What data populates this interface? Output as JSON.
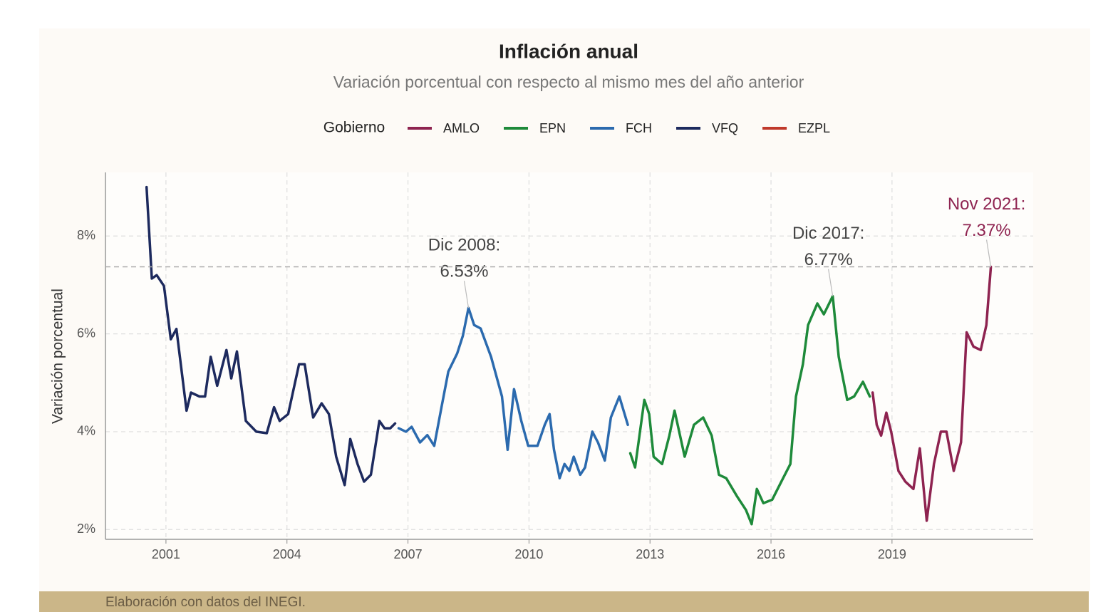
{
  "chart_data": {
    "type": "line",
    "title": "Inflación anual",
    "subtitle": "Variación porcentual con respecto al mismo mes del año anterior",
    "legend_title": "Gobierno",
    "y_label": "Variación porcentual",
    "source": "Elaboración con datos del INEGI.",
    "xlim": [
      1999.5,
      2022.5
    ],
    "xticks": [
      2001,
      2004,
      2007,
      2010,
      2013,
      2016,
      2019
    ],
    "ylim": [
      1.8,
      9.3
    ],
    "yticks": [
      {
        "value": 2,
        "label": "2%"
      },
      {
        "value": 4,
        "label": "4%"
      },
      {
        "value": 6,
        "label": "6%"
      },
      {
        "value": 8,
        "label": "8%"
      }
    ],
    "grid": true,
    "series": [
      {
        "name": "AMLO",
        "color": "#8e2350",
        "x": [
          2018.52,
          2018.62,
          2018.73,
          2018.86,
          2018.98,
          2019.16,
          2019.33,
          2019.53,
          2019.69,
          2019.86,
          2020.04,
          2020.21,
          2020.35,
          2020.53,
          2020.71,
          2020.85,
          2021.02,
          2021.2,
          2021.34,
          2021.45
        ],
        "values": [
          4.8,
          4.14,
          3.92,
          4.39,
          4.0,
          3.2,
          2.98,
          2.83,
          3.66,
          2.18,
          3.34,
          4.0,
          4.0,
          3.2,
          3.78,
          6.03,
          5.74,
          5.67,
          6.18,
          7.37
        ]
      },
      {
        "name": "EPN",
        "color": "#1e8a3a",
        "x": [
          2012.51,
          2012.63,
          2012.86,
          2012.98,
          2013.09,
          2013.3,
          2013.48,
          2013.61,
          2013.86,
          2014.09,
          2014.32,
          2014.53,
          2014.71,
          2014.89,
          2015.15,
          2015.38,
          2015.52,
          2015.65,
          2015.81,
          2016.03,
          2016.3,
          2016.48,
          2016.62,
          2016.79,
          2016.92,
          2017.15,
          2017.31,
          2017.53,
          2017.68,
          2017.89,
          2018.06,
          2018.28,
          2018.45
        ],
        "values": [
          3.56,
          3.27,
          4.65,
          4.36,
          3.49,
          3.34,
          3.92,
          4.43,
          3.49,
          4.14,
          4.29,
          3.92,
          3.12,
          3.05,
          2.69,
          2.4,
          2.11,
          2.83,
          2.54,
          2.61,
          3.05,
          3.34,
          4.72,
          5.38,
          6.18,
          6.62,
          6.4,
          6.77,
          5.53,
          4.65,
          4.72,
          5.02,
          4.72
        ]
      },
      {
        "name": "FCH",
        "color": "#2b6aae",
        "x": [
          2006.77,
          2006.95,
          2007.09,
          2007.3,
          2007.48,
          2007.65,
          2007.83,
          2008.0,
          2008.22,
          2008.36,
          2008.5,
          2008.64,
          2008.8,
          2009.06,
          2009.33,
          2009.47,
          2009.63,
          2009.81,
          2009.98,
          2010.21,
          2010.39,
          2010.51,
          2010.62,
          2010.76,
          2010.88,
          2011.0,
          2011.11,
          2011.27,
          2011.39,
          2011.57,
          2011.71,
          2011.88,
          2012.03,
          2012.24,
          2012.45
        ],
        "values": [
          4.07,
          4.0,
          4.1,
          3.78,
          3.93,
          3.71,
          4.5,
          5.23,
          5.6,
          5.96,
          6.53,
          6.18,
          6.11,
          5.53,
          4.72,
          3.63,
          4.87,
          4.22,
          3.71,
          3.71,
          4.14,
          4.36,
          3.63,
          3.05,
          3.34,
          3.2,
          3.49,
          3.12,
          3.27,
          4.0,
          3.78,
          3.41,
          4.29,
          4.72,
          4.14
        ]
      },
      {
        "name": "VFQ",
        "color": "#1d2a5e",
        "x": [
          2000.52,
          2000.65,
          2000.77,
          2000.95,
          2001.12,
          2001.26,
          2001.51,
          2001.62,
          2001.83,
          2001.97,
          2002.11,
          2002.27,
          2002.5,
          2002.62,
          2002.76,
          2002.98,
          2003.24,
          2003.5,
          2003.68,
          2003.82,
          2004.03,
          2004.3,
          2004.44,
          2004.65,
          2004.86,
          2005.04,
          2005.22,
          2005.43,
          2005.57,
          2005.75,
          2005.91,
          2006.08,
          2006.29,
          2006.42,
          2006.56,
          2006.68
        ],
        "values": [
          9.0,
          7.13,
          7.2,
          6.98,
          5.89,
          6.1,
          4.43,
          4.8,
          4.72,
          4.72,
          5.53,
          4.94,
          5.67,
          5.09,
          5.64,
          4.22,
          4.0,
          3.97,
          4.5,
          4.22,
          4.36,
          5.38,
          5.38,
          4.29,
          4.58,
          4.36,
          3.49,
          2.91,
          3.85,
          3.34,
          2.98,
          3.12,
          4.22,
          4.07,
          4.07,
          4.17
        ]
      },
      {
        "name": "EZPL",
        "color": "#c0392b",
        "x": [],
        "values": []
      }
    ],
    "annotations": [
      {
        "lines": [
          "Dic 2008:",
          "6.53%"
        ],
        "x": 2008.5,
        "y": 6.53,
        "color": "#444444"
      },
      {
        "lines": [
          "Dic 2017:",
          "6.77%"
        ],
        "x": 2017.53,
        "y": 6.77,
        "color": "#444444"
      },
      {
        "lines": [
          "Nov 2021:",
          "7.37%"
        ],
        "x": 2021.45,
        "y": 7.37,
        "color": "#8e2350"
      }
    ]
  }
}
